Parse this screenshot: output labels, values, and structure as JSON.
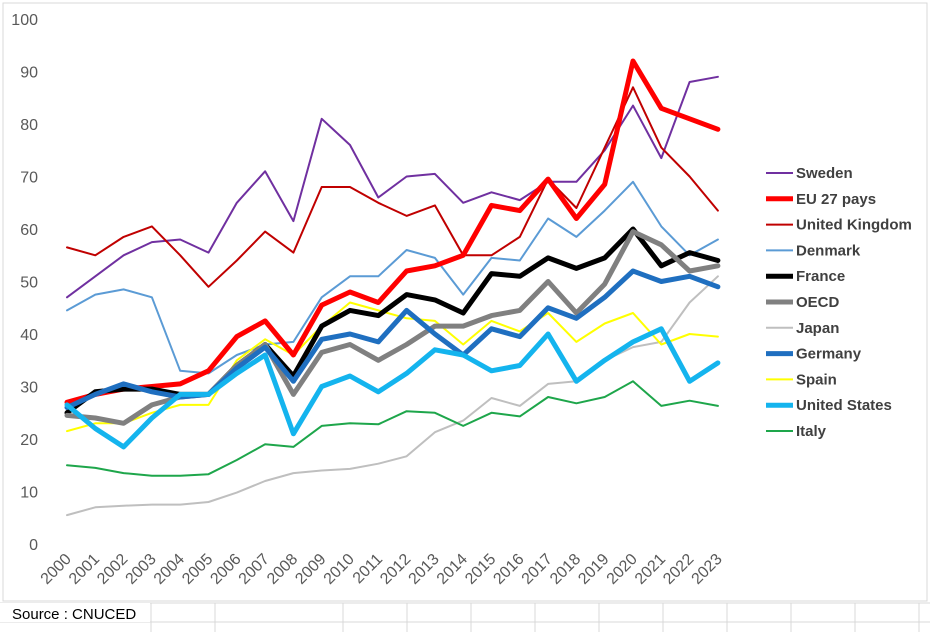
{
  "source": "Source : CNUCED",
  "chart_data": {
    "type": "line",
    "title": "",
    "xlabel": "",
    "ylabel": "",
    "ylim": [
      0,
      100
    ],
    "yticks": [
      0,
      10,
      20,
      30,
      40,
      50,
      60,
      70,
      80,
      90,
      100
    ],
    "grid": false,
    "legend_position": "right",
    "categories": [
      "2000",
      "2001",
      "2002",
      "2003",
      "2004",
      "2005",
      "2006",
      "2007",
      "2008",
      "2009",
      "2010",
      "2011",
      "2012",
      "2013",
      "2014",
      "2015",
      "2016",
      "2017",
      "2018",
      "2019",
      "2020",
      "2021",
      "2022",
      "2023"
    ],
    "series": [
      {
        "name": "Sweden",
        "color": "#7030a0",
        "width": "medium",
        "values": [
          47,
          51,
          55,
          57.5,
          58,
          55.5,
          65,
          71,
          61.5,
          81,
          76,
          66,
          70,
          70.5,
          65,
          67,
          65.5,
          69,
          69,
          75,
          83.5,
          73.5,
          88,
          89
        ]
      },
      {
        "name": "EU 27 pays",
        "color": "#ff0000",
        "width": "thick",
        "values": [
          27,
          28.5,
          29.5,
          30,
          30.5,
          33,
          39.5,
          42.5,
          36,
          45.5,
          48,
          46,
          52,
          53,
          55,
          64.5,
          63.5,
          69.5,
          62,
          68.5,
          92,
          83,
          81,
          79
        ]
      },
      {
        "name": "United Kingdom",
        "color": "#c00000",
        "width": "medium",
        "values": [
          56.5,
          55,
          58.5,
          60.5,
          55,
          49,
          54,
          59.5,
          55.5,
          68,
          68,
          65,
          62.5,
          64.5,
          55,
          55,
          58.5,
          69.5,
          64,
          75.5,
          87,
          75.5,
          70,
          63.5
        ]
      },
      {
        "name": "Denmark",
        "color": "#5b9bd5",
        "width": "medium",
        "values": [
          44.5,
          47.5,
          48.5,
          47,
          33,
          32.5,
          36,
          38,
          38.5,
          47,
          51,
          51,
          56,
          54.5,
          47.5,
          54.5,
          54,
          62,
          58.5,
          63.5,
          69,
          60.5,
          55,
          58
        ]
      },
      {
        "name": "France",
        "color": "#000000",
        "width": "thick",
        "values": [
          25,
          29,
          29.5,
          29.5,
          28.5,
          28.5,
          34,
          38,
          32,
          41.5,
          44.5,
          43.5,
          47.5,
          46.5,
          44,
          51.5,
          51,
          54.5,
          52.5,
          54.5,
          60,
          53,
          55.5,
          54
        ]
      },
      {
        "name": "OECD",
        "color": "#808080",
        "width": "thick",
        "values": [
          24.5,
          24,
          23,
          26.5,
          28,
          28.5,
          34,
          38,
          28.5,
          36.5,
          38,
          35,
          38,
          41.5,
          41.5,
          43.5,
          44.5,
          50,
          44,
          49.5,
          59.5,
          57,
          52,
          53
        ]
      },
      {
        "name": "Japan",
        "color": "#bfbfbf",
        "width": "medium",
        "values": [
          5.5,
          7,
          7.3,
          7.5,
          7.5,
          8,
          9.8,
          12,
          13.5,
          14,
          14.3,
          15.3,
          16.7,
          21.3,
          23.5,
          27.8,
          26.3,
          30.5,
          31,
          35,
          37.5,
          38.5,
          46,
          51
        ]
      },
      {
        "name": "Germany",
        "color": "#1f6fc0",
        "width": "thick",
        "values": [
          26,
          28.5,
          30.5,
          29,
          28,
          28.5,
          33.5,
          37.5,
          31,
          39,
          40,
          38.5,
          44.5,
          40,
          36,
          41,
          39.5,
          45,
          43,
          47,
          52,
          50,
          51,
          49
        ]
      },
      {
        "name": "Spain",
        "color": "#ffff00",
        "width": "medium",
        "values": [
          21.5,
          23,
          23,
          25,
          26.5,
          26.5,
          35,
          39,
          36,
          41.5,
          46,
          44.5,
          43,
          42.5,
          38,
          42.5,
          40.5,
          44,
          38.5,
          42,
          44,
          38,
          40,
          39.5
        ]
      },
      {
        "name": "United States",
        "color": "#14b4ee",
        "width": "thick",
        "values": [
          26.5,
          22,
          18.5,
          24,
          28.5,
          28.5,
          32.5,
          36,
          21,
          30,
          32,
          29,
          32.5,
          37,
          36,
          33,
          34,
          40,
          31,
          35,
          38.5,
          41,
          31,
          34.5
        ]
      },
      {
        "name": "Italy",
        "color": "#1ea64b",
        "width": "medium",
        "values": [
          15,
          14.5,
          13.5,
          13,
          13,
          13.3,
          16,
          19,
          18.5,
          22.5,
          23,
          22.8,
          25.3,
          25,
          22.5,
          25,
          24.3,
          28,
          26.8,
          28,
          31,
          26.3,
          27.3,
          26.3
        ]
      }
    ]
  }
}
